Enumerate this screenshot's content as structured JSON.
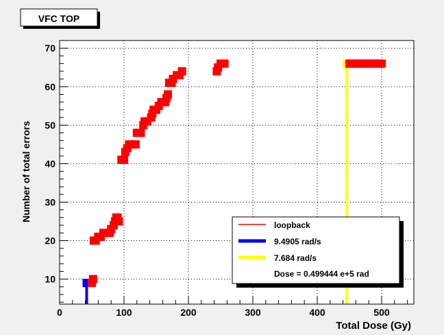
{
  "chart_data": {
    "type": "scatter",
    "title": "VFC TOP",
    "xlabel": "Total Dose (Gy)",
    "ylabel": "Number of total errors",
    "xlim": [
      0,
      550
    ],
    "ylim": [
      3.5,
      72
    ],
    "xticks": [
      0,
      100,
      200,
      300,
      400,
      500
    ],
    "yticks": [
      10,
      20,
      30,
      40,
      50,
      60,
      70
    ],
    "grid": true,
    "legend_position": "bottom-right",
    "series": [
      {
        "name": "loopback",
        "color": "#ff0000",
        "marker": "square",
        "points": [
          [
            50,
            9
          ],
          [
            52,
            10
          ],
          [
            53,
            20
          ],
          [
            56,
            20
          ],
          [
            60,
            21
          ],
          [
            64,
            21
          ],
          [
            68,
            22
          ],
          [
            74,
            22
          ],
          [
            78,
            22
          ],
          [
            80,
            23
          ],
          [
            84,
            24
          ],
          [
            86,
            25
          ],
          [
            88,
            26
          ],
          [
            90,
            26
          ],
          [
            92,
            25
          ],
          [
            96,
            41
          ],
          [
            100,
            41
          ],
          [
            102,
            43
          ],
          [
            105,
            44
          ],
          [
            108,
            45
          ],
          [
            112,
            45
          ],
          [
            118,
            45
          ],
          [
            120,
            48
          ],
          [
            126,
            48
          ],
          [
            130,
            50
          ],
          [
            132,
            51
          ],
          [
            136,
            51
          ],
          [
            142,
            52
          ],
          [
            144,
            53
          ],
          [
            146,
            54
          ],
          [
            150,
            54
          ],
          [
            154,
            55
          ],
          [
            158,
            56
          ],
          [
            164,
            56
          ],
          [
            166,
            57
          ],
          [
            168,
            58
          ],
          [
            170,
            61
          ],
          [
            174,
            61
          ],
          [
            176,
            62
          ],
          [
            182,
            63
          ],
          [
            186,
            63
          ],
          [
            190,
            64
          ],
          [
            244,
            64
          ],
          [
            246,
            65
          ],
          [
            250,
            66
          ],
          [
            256,
            66
          ],
          [
            450,
            66
          ],
          [
            455,
            66
          ],
          [
            460,
            66
          ],
          [
            465,
            66
          ],
          [
            470,
            66
          ],
          [
            475,
            66
          ],
          [
            480,
            66
          ],
          [
            485,
            66
          ],
          [
            490,
            66
          ],
          [
            495,
            66
          ],
          [
            500,
            66
          ]
        ]
      }
    ],
    "markers": [
      {
        "name": "9.4905 rad/s",
        "color": "#0000ff",
        "x": 42,
        "y_bottom": 3.5,
        "y_top": 9
      },
      {
        "name": "7.684 rad/s",
        "color": "#ffff00",
        "x": 446,
        "y_bottom": 3.5,
        "y_top": 66
      }
    ],
    "legend_note": "Dose = 0.499444 e+5 rad"
  }
}
